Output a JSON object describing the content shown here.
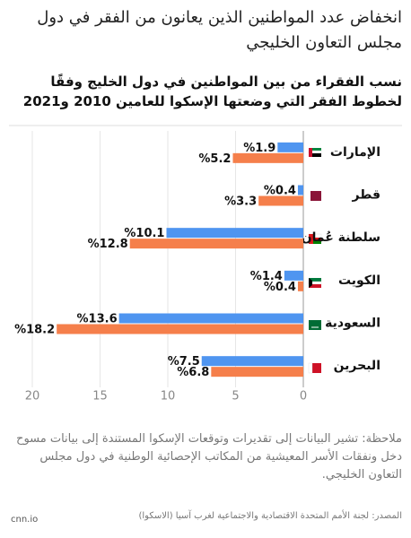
{
  "chart_data": {
    "type": "barh",
    "title": "انخفاض عدد المواطنين الذين يعانون من الفقر في دول مجلس التعاون الخليجي",
    "subtitle": "نسب الفقراء من بين المواطنين في دول الخليج وفقًا لخطوط الفقر التي وضعتها الإسكوا للعامين 2010 و2021",
    "categories": [
      "الإمارات",
      "قطر",
      "سلطنة عُمان",
      "الكويت",
      "السعودية",
      "البحرين"
    ],
    "series": [
      {
        "color": "#4f95f0",
        "values": [
          1.9,
          0.4,
          10.1,
          1.4,
          13.6,
          7.5
        ],
        "value_labels": [
          "%1.9",
          "%0.4",
          "%10.1",
          "%1.4",
          "%13.6",
          "%7.5"
        ]
      },
      {
        "color": "#f57f4b",
        "values": [
          5.2,
          3.3,
          12.8,
          0.4,
          18.2,
          6.8
        ],
        "value_labels": [
          "%5.2",
          "%3.3",
          "%12.8",
          "%0.4",
          "%18.2",
          "%6.8"
        ]
      }
    ],
    "xlim": [
      0,
      20
    ],
    "xticks": [
      20,
      15,
      10,
      5,
      0
    ],
    "x_reversed": true,
    "grid": true,
    "note": "ملاحظة: تشير البيانات إلى تقديرات وتوقعات الإسكوا المستندة إلى بيانات مسوح دخل ونفقات الأسر المعيشية من المكاتب الإحصائية الوطنية في دول مجلس التعاون الخليجي.",
    "source": "المصدر: لجنة الأمم المتحدة الاقتصادية والاجتماعية لغرب آسيا (الاسكوا)",
    "logo": "cnn.io"
  }
}
